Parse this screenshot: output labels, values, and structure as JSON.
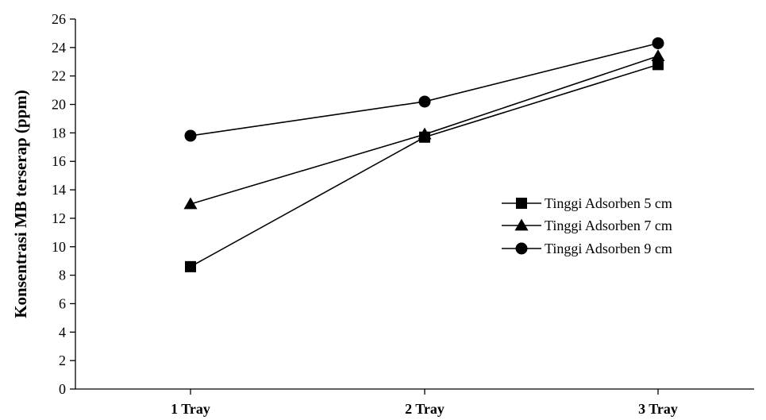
{
  "chart_data": {
    "type": "line",
    "title": "",
    "xlabel": "",
    "ylabel": "Konsentrasi MB terserap (ppm)",
    "categories": [
      "1 Tray",
      "2 Tray",
      "3 Tray"
    ],
    "ylim": [
      0,
      26
    ],
    "yticks": [
      0,
      2,
      4,
      6,
      8,
      10,
      12,
      14,
      16,
      18,
      20,
      22,
      24,
      26
    ],
    "grid": false,
    "legend_position": "right",
    "series": [
      {
        "name": "Tinggi Adsorben 5 cm",
        "marker": "square",
        "color": "#000000",
        "values": [
          8.6,
          17.7,
          22.8
        ]
      },
      {
        "name": "Tinggi Adsorben 7 cm",
        "marker": "triangle",
        "color": "#000000",
        "values": [
          13.0,
          17.9,
          23.4
        ]
      },
      {
        "name": "Tinggi Adsorben 9 cm",
        "marker": "circle",
        "color": "#000000",
        "values": [
          17.8,
          20.2,
          24.3
        ]
      }
    ]
  }
}
